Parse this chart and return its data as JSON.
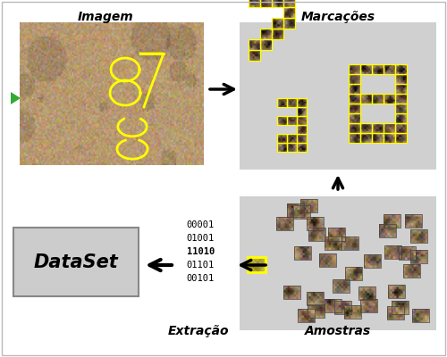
{
  "bg_color": "#ffffff",
  "border_color": "#bbbbbb",
  "labels": {
    "imagem": "Imagem",
    "marcacoes": "Marcações",
    "extracao": "Extração",
    "amostras": "Amostras",
    "dataset": "DataSet"
  },
  "binary_codes": [
    "00001",
    "01001",
    "11010",
    "01101",
    "00101"
  ],
  "arrow_color": "#111111",
  "label_fontsize": 10,
  "dataset_fontsize": 15,
  "gray_box": "#cccccc",
  "yellow_color": "#ffff00",
  "green_arrow_color": "#33aa33",
  "skin_base": [
    0.72,
    0.6,
    0.44
  ],
  "skin_std": 0.05
}
